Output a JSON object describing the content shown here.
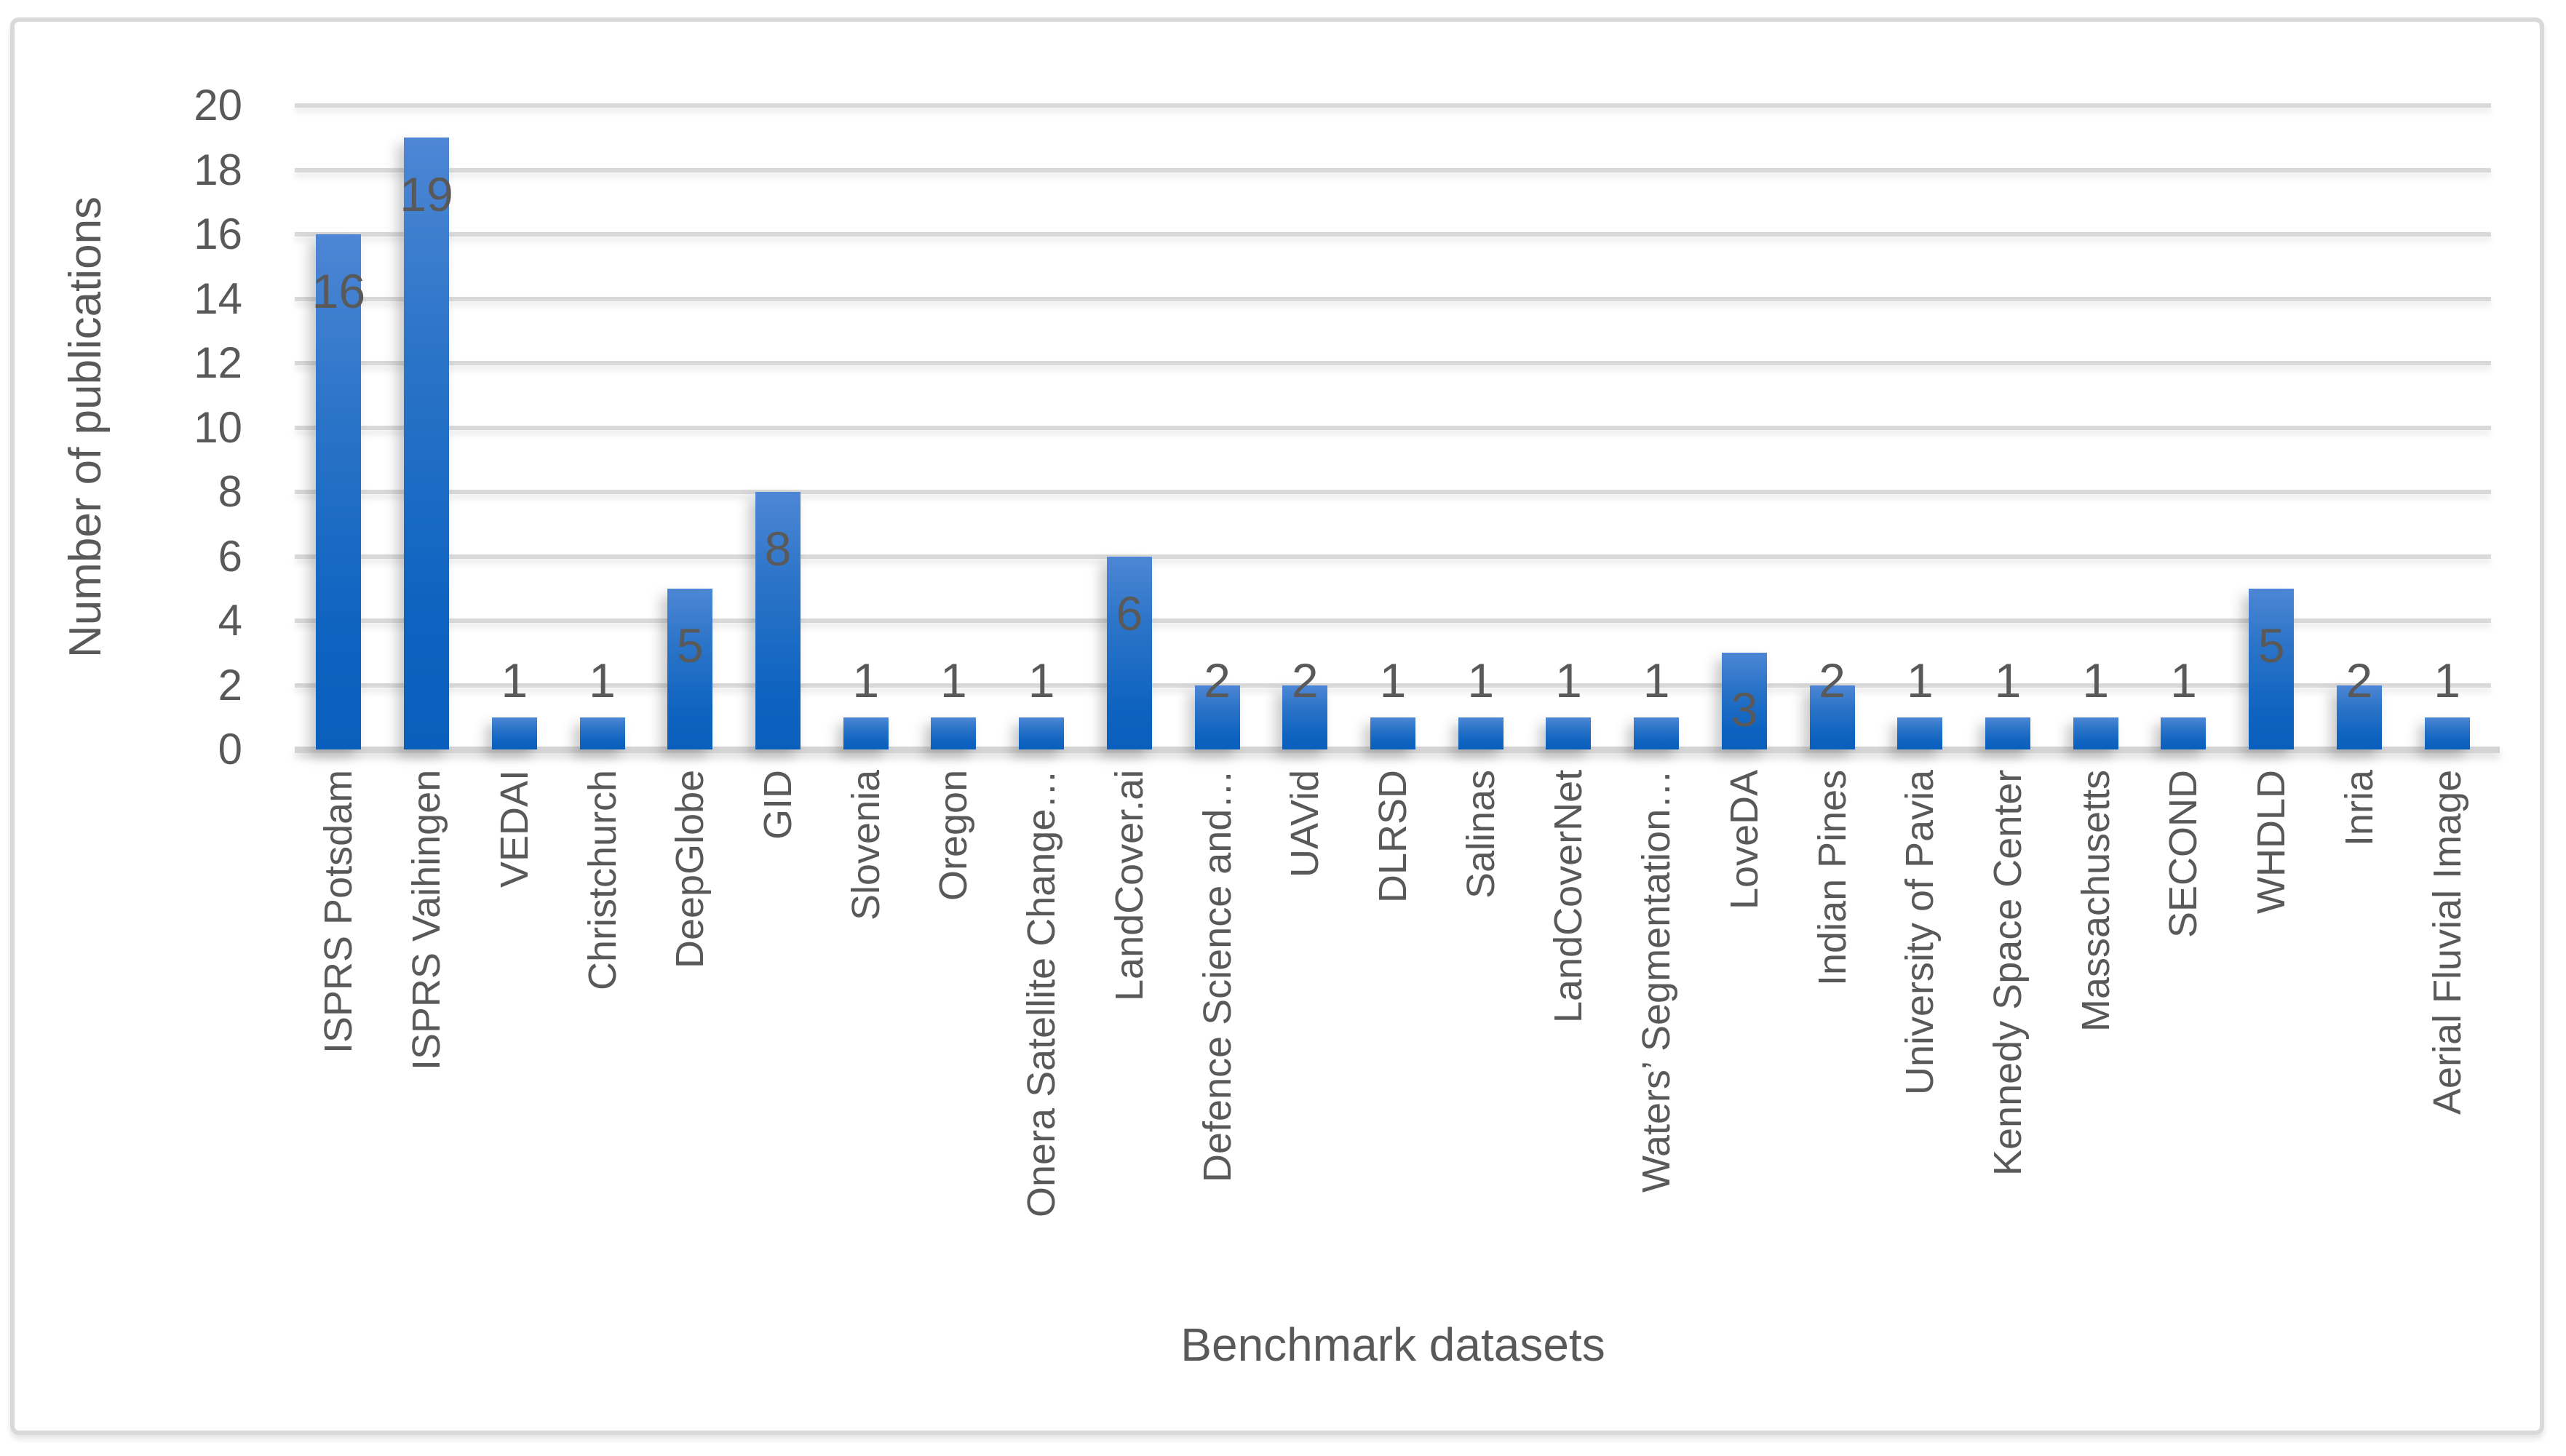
{
  "chart_data": {
    "type": "bar",
    "title": "",
    "xlabel": "Benchmark datasets",
    "ylabel": "Number of publications",
    "categories": [
      "ISPRS Potsdam",
      "ISPRS Vaihingen",
      "VEDAI",
      "Christchurch",
      "DeepGlobe",
      "GID",
      "Slovenia",
      "Oregon",
      "Onera Satellite Change…",
      "LandCover.ai",
      "Defence Science and…",
      "UAVid",
      "DLRSD",
      "Salinas",
      "LandCoverNet",
      "Waters’ Segmentation…",
      "LoveDA",
      "Indian Pines",
      "University of Pavia",
      "Kennedy Space Center",
      "Massachusetts",
      "SECOND",
      "WHDLD",
      "Inria",
      "Aerial Fluvial Image"
    ],
    "values": [
      16,
      19,
      1,
      1,
      5,
      8,
      1,
      1,
      1,
      6,
      2,
      2,
      1,
      1,
      1,
      1,
      3,
      2,
      1,
      1,
      1,
      1,
      5,
      2,
      1
    ],
    "ylim": [
      0,
      20
    ],
    "ytick_step": 2,
    "ytick_labels": [
      "0",
      "2",
      "4",
      "6",
      "8",
      "10",
      "12",
      "14",
      "16",
      "18",
      "20"
    ],
    "grid": "horizontal-only",
    "legend": "none",
    "colors": {
      "bar_gradient_top": "#4E86D5",
      "bar_gradient_bottom": "#0B5FBC",
      "gridline": "#D9D9D9",
      "axis_line": "#D4D4D4",
      "text": "#595959",
      "frame_border": "#D9D9D9"
    }
  }
}
